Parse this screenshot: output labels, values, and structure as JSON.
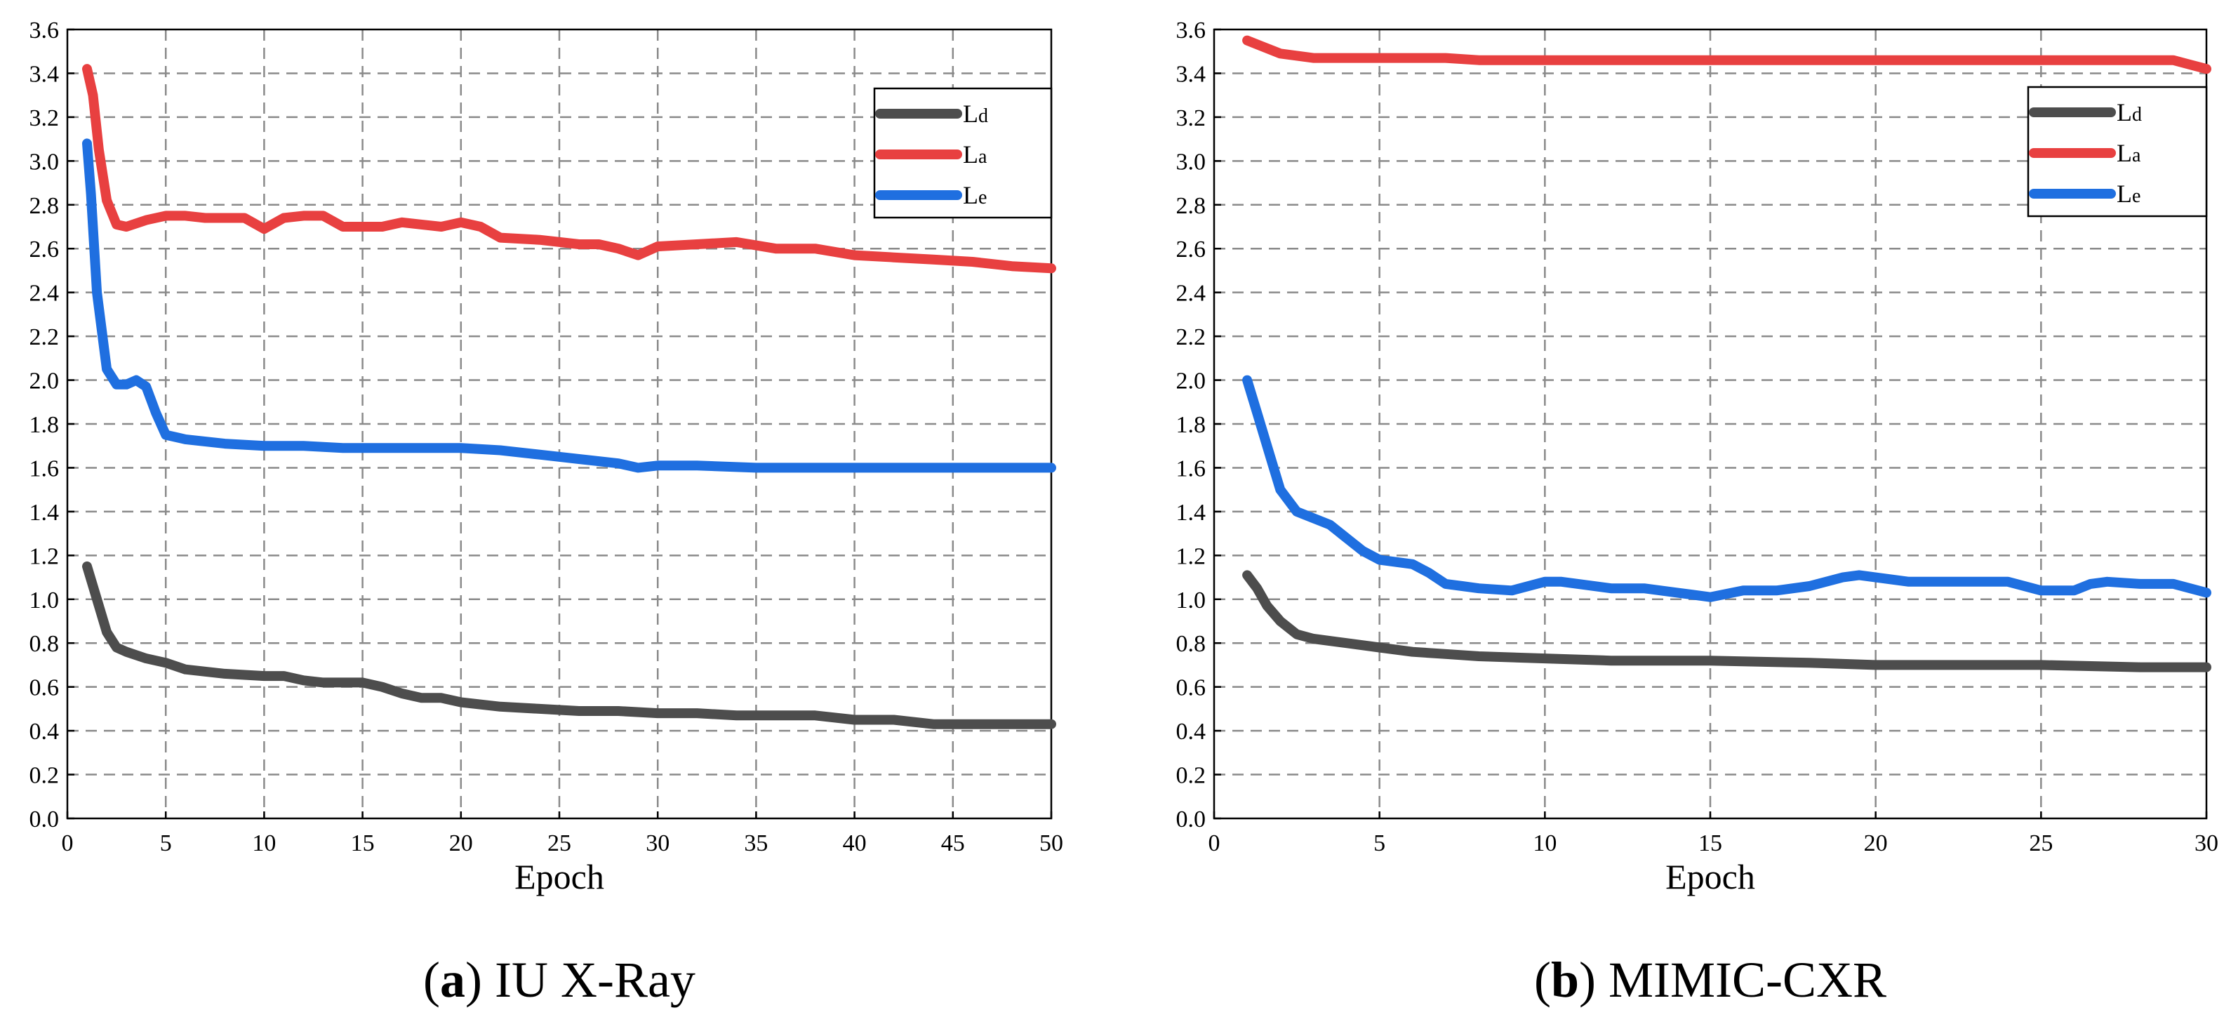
{
  "figure_captions": [
    {
      "letter": "(a)",
      "label": "(a)",
      "name": "IU X-Ray"
    },
    {
      "letter": "(b)",
      "label": "(b)",
      "name": "MIMIC-CXR"
    }
  ],
  "colors": {
    "Ld": "#4d4d4d",
    "La": "#e84040",
    "Le": "#1f6fe0",
    "grid": "#8a8a8a"
  },
  "chart_data": [
    {
      "type": "line",
      "title": "IU X-Ray",
      "xlabel": "Epoch",
      "ylabel": "",
      "xlim": [
        0,
        50
      ],
      "ylim": [
        0,
        3.6
      ],
      "xticks": [
        0,
        5,
        10,
        15,
        20,
        25,
        30,
        35,
        40,
        45,
        50
      ],
      "yticks": [
        0,
        0.2,
        0.4,
        0.6,
        0.8,
        1.0,
        1.2,
        1.4,
        1.6,
        1.8,
        2.0,
        2.2,
        2.4,
        2.6,
        2.8,
        3.0,
        3.2,
        3.4,
        3.6
      ],
      "xtick_labels": [
        "0",
        "5",
        "10",
        "15",
        "20",
        "25",
        "30",
        "35",
        "40",
        "45",
        "50"
      ],
      "ytick_labels": [
        "0.0",
        "0.2",
        "0.4",
        "0.6",
        "0.8",
        "1.0",
        "1.2",
        "1.4",
        "1.6",
        "1.8",
        "2.0",
        "2.2",
        "2.4",
        "2.6",
        "2.8",
        "3.0",
        "3.2",
        "3.4",
        "3.6"
      ],
      "grid": true,
      "legend_position": "top-right",
      "series": [
        {
          "name": "Ld",
          "sub": "d",
          "x": [
            1,
            1.5,
            2,
            2.5,
            3,
            4,
            5,
            6,
            8,
            10,
            11,
            12,
            13,
            14,
            15,
            16,
            17,
            18,
            19,
            20,
            22,
            24,
            26,
            28,
            30,
            32,
            34,
            36,
            38,
            40,
            42,
            44,
            46,
            48,
            50
          ],
          "y": [
            1.15,
            1.0,
            0.85,
            0.78,
            0.76,
            0.73,
            0.71,
            0.68,
            0.66,
            0.65,
            0.65,
            0.63,
            0.62,
            0.62,
            0.62,
            0.6,
            0.57,
            0.55,
            0.55,
            0.53,
            0.51,
            0.5,
            0.49,
            0.49,
            0.48,
            0.48,
            0.47,
            0.47,
            0.47,
            0.45,
            0.45,
            0.43,
            0.43,
            0.43,
            0.43
          ]
        },
        {
          "name": "La",
          "sub": "a",
          "x": [
            1,
            1.3,
            1.6,
            2,
            2.5,
            3,
            4,
            5,
            6,
            7,
            8,
            9,
            10,
            11,
            12,
            13,
            14,
            15,
            16,
            17,
            18,
            19,
            20,
            21,
            22,
            24,
            26,
            27,
            28,
            29,
            30,
            32,
            34,
            36,
            38,
            40,
            42,
            44,
            46,
            48,
            50
          ],
          "y": [
            3.42,
            3.3,
            3.05,
            2.82,
            2.71,
            2.7,
            2.73,
            2.75,
            2.75,
            2.74,
            2.74,
            2.74,
            2.69,
            2.74,
            2.75,
            2.75,
            2.7,
            2.7,
            2.7,
            2.72,
            2.71,
            2.7,
            2.72,
            2.7,
            2.65,
            2.64,
            2.62,
            2.62,
            2.6,
            2.57,
            2.61,
            2.62,
            2.63,
            2.6,
            2.6,
            2.57,
            2.56,
            2.55,
            2.54,
            2.52,
            2.51
          ]
        },
        {
          "name": "Le",
          "sub": "e",
          "x": [
            1,
            1.2,
            1.5,
            2,
            2.5,
            3,
            3.5,
            4,
            4.5,
            5,
            6,
            8,
            10,
            12,
            14,
            16,
            18,
            20,
            22,
            24,
            26,
            28,
            29,
            30,
            32,
            35,
            40,
            45,
            50
          ],
          "y": [
            3.08,
            2.85,
            2.4,
            2.05,
            1.98,
            1.98,
            2.0,
            1.97,
            1.85,
            1.75,
            1.73,
            1.71,
            1.7,
            1.7,
            1.69,
            1.69,
            1.69,
            1.69,
            1.68,
            1.66,
            1.64,
            1.62,
            1.6,
            1.61,
            1.61,
            1.6,
            1.6,
            1.6,
            1.6
          ]
        }
      ]
    },
    {
      "type": "line",
      "title": "MIMIC-CXR",
      "xlabel": "Epoch",
      "ylabel": "",
      "xlim": [
        0,
        30
      ],
      "ylim": [
        0,
        3.6
      ],
      "xticks": [
        0,
        5,
        10,
        15,
        20,
        25,
        30
      ],
      "yticks": [
        0,
        0.2,
        0.4,
        0.6,
        0.8,
        1.0,
        1.2,
        1.4,
        1.6,
        1.8,
        2.0,
        2.2,
        2.4,
        2.6,
        2.8,
        3.0,
        3.2,
        3.4,
        3.6
      ],
      "xtick_labels": [
        "0",
        "5",
        "10",
        "15",
        "20",
        "25",
        "30"
      ],
      "ytick_labels": [
        "0.0",
        "0.2",
        "0.4",
        "0.6",
        "0.8",
        "1.0",
        "1.2",
        "1.4",
        "1.6",
        "1.8",
        "2.0",
        "2.2",
        "2.4",
        "2.6",
        "2.8",
        "3.0",
        "3.2",
        "3.4",
        "3.6"
      ],
      "grid": true,
      "legend_position": "top-right",
      "series": [
        {
          "name": "Ld",
          "sub": "d",
          "x": [
            1,
            1.3,
            1.6,
            2,
            2.5,
            3,
            4,
            5,
            6,
            7,
            8,
            10,
            12,
            15,
            18,
            20,
            25,
            28,
            30
          ],
          "y": [
            1.11,
            1.05,
            0.97,
            0.9,
            0.84,
            0.82,
            0.8,
            0.78,
            0.76,
            0.75,
            0.74,
            0.73,
            0.72,
            0.72,
            0.71,
            0.7,
            0.7,
            0.69,
            0.69
          ]
        },
        {
          "name": "La",
          "sub": "a",
          "x": [
            1,
            1.5,
            2,
            3,
            5,
            7,
            8,
            10,
            15,
            20,
            25,
            29,
            29.5,
            30
          ],
          "y": [
            3.55,
            3.52,
            3.49,
            3.47,
            3.47,
            3.47,
            3.46,
            3.46,
            3.46,
            3.46,
            3.46,
            3.46,
            3.44,
            3.42
          ]
        },
        {
          "name": "Le",
          "sub": "e",
          "x": [
            1,
            1.3,
            1.7,
            2,
            2.5,
            3,
            3.5,
            4,
            4.5,
            5,
            6,
            6.5,
            7,
            7.5,
            8,
            9,
            10,
            10.5,
            11,
            12,
            13,
            14,
            15,
            16,
            17,
            18,
            19,
            19.5,
            20,
            21,
            22,
            23,
            24,
            25,
            26,
            26.5,
            27,
            28,
            29,
            30
          ],
          "y": [
            2.0,
            1.85,
            1.65,
            1.5,
            1.4,
            1.37,
            1.34,
            1.28,
            1.22,
            1.18,
            1.16,
            1.12,
            1.07,
            1.06,
            1.05,
            1.04,
            1.08,
            1.08,
            1.07,
            1.05,
            1.05,
            1.03,
            1.01,
            1.04,
            1.04,
            1.06,
            1.1,
            1.11,
            1.1,
            1.08,
            1.08,
            1.08,
            1.08,
            1.04,
            1.04,
            1.07,
            1.08,
            1.07,
            1.07,
            1.03
          ]
        }
      ]
    }
  ]
}
